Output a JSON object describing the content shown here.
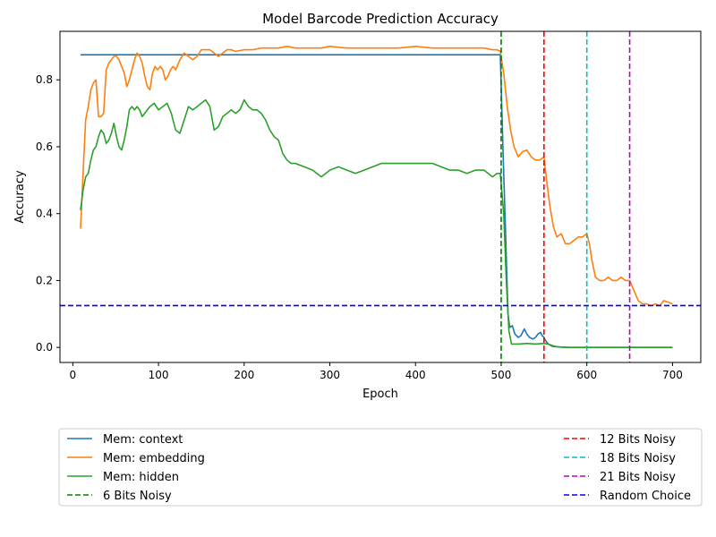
{
  "chart_data": {
    "type": "line",
    "title": "Model Barcode Prediction Accuracy",
    "xlabel": "Epoch",
    "ylabel": "Accuracy",
    "xlim": [
      -15,
      733
    ],
    "ylim": [
      -0.045,
      0.945
    ],
    "xticks": [
      0,
      100,
      200,
      300,
      400,
      500,
      600,
      700
    ],
    "yticks": [
      0.0,
      0.2,
      0.4,
      0.6,
      0.8
    ],
    "xtick_labels": [
      "0",
      "100",
      "200",
      "300",
      "400",
      "500",
      "600",
      "700"
    ],
    "ytick_labels": [
      "0.0",
      "0.2",
      "0.4",
      "0.6",
      "0.8"
    ],
    "grid": false,
    "legend_position": "below chart, two columns",
    "series": [
      {
        "name": "Mem: context",
        "color": "#1f77b4",
        "style": "solid",
        "x": [
          9,
          100,
          200,
          300,
          400,
          490,
          499,
          502,
          505,
          508,
          510,
          513,
          516,
          520,
          523,
          527,
          530,
          533,
          537,
          540,
          543,
          546,
          548,
          550,
          552,
          555,
          560,
          570,
          580,
          600,
          650,
          700
        ],
        "y": [
          0.875,
          0.875,
          0.875,
          0.875,
          0.875,
          0.875,
          0.875,
          0.6,
          0.35,
          0.1,
          0.06,
          0.065,
          0.04,
          0.03,
          0.035,
          0.055,
          0.04,
          0.03,
          0.025,
          0.03,
          0.04,
          0.045,
          0.035,
          0.03,
          0.02,
          0.01,
          0.003,
          0.001,
          0.0,
          0.0,
          0.0,
          0.0
        ]
      },
      {
        "name": "Mem: embedding",
        "color": "#ff7f0e",
        "style": "solid",
        "x": [
          9,
          12,
          15,
          18,
          21,
          24,
          27,
          30,
          33,
          36,
          39,
          42,
          45,
          48,
          51,
          54,
          57,
          60,
          63,
          66,
          69,
          72,
          75,
          78,
          81,
          84,
          87,
          90,
          93,
          96,
          99,
          102,
          105,
          108,
          111,
          114,
          117,
          120,
          125,
          130,
          135,
          140,
          145,
          150,
          155,
          160,
          165,
          170,
          175,
          180,
          185,
          190,
          200,
          210,
          220,
          230,
          240,
          250,
          260,
          270,
          280,
          290,
          300,
          320,
          340,
          360,
          380,
          400,
          420,
          440,
          460,
          480,
          490,
          495,
          499,
          503,
          507,
          511,
          515,
          520,
          525,
          530,
          535,
          540,
          545,
          550,
          553,
          557,
          561,
          565,
          570,
          575,
          580,
          585,
          590,
          595,
          600,
          603,
          606,
          610,
          615,
          620,
          625,
          630,
          635,
          640,
          645,
          650,
          655,
          660,
          665,
          670,
          675,
          680,
          685,
          690,
          695,
          700
        ],
        "y": [
          0.355,
          0.52,
          0.68,
          0.72,
          0.77,
          0.79,
          0.8,
          0.69,
          0.69,
          0.7,
          0.83,
          0.85,
          0.86,
          0.87,
          0.87,
          0.86,
          0.84,
          0.82,
          0.78,
          0.8,
          0.83,
          0.86,
          0.88,
          0.87,
          0.85,
          0.81,
          0.78,
          0.77,
          0.82,
          0.84,
          0.83,
          0.84,
          0.83,
          0.8,
          0.81,
          0.83,
          0.84,
          0.83,
          0.86,
          0.88,
          0.87,
          0.86,
          0.87,
          0.89,
          0.89,
          0.89,
          0.88,
          0.87,
          0.88,
          0.89,
          0.89,
          0.885,
          0.89,
          0.89,
          0.895,
          0.895,
          0.895,
          0.9,
          0.895,
          0.895,
          0.895,
          0.895,
          0.9,
          0.895,
          0.895,
          0.895,
          0.895,
          0.9,
          0.895,
          0.895,
          0.895,
          0.895,
          0.89,
          0.89,
          0.885,
          0.82,
          0.72,
          0.65,
          0.6,
          0.57,
          0.585,
          0.59,
          0.57,
          0.56,
          0.56,
          0.57,
          0.5,
          0.42,
          0.36,
          0.33,
          0.34,
          0.31,
          0.31,
          0.32,
          0.33,
          0.33,
          0.34,
          0.31,
          0.26,
          0.21,
          0.2,
          0.2,
          0.21,
          0.2,
          0.2,
          0.21,
          0.2,
          0.2,
          0.17,
          0.14,
          0.13,
          0.13,
          0.125,
          0.13,
          0.125,
          0.14,
          0.135,
          0.13
        ]
      },
      {
        "name": "Mem: hidden",
        "color": "#2ca02c",
        "style": "solid",
        "x": [
          9,
          12,
          15,
          18,
          21,
          24,
          27,
          30,
          33,
          36,
          39,
          42,
          45,
          48,
          51,
          54,
          57,
          60,
          63,
          66,
          69,
          72,
          75,
          78,
          81,
          84,
          87,
          90,
          95,
          100,
          105,
          110,
          115,
          120,
          125,
          130,
          135,
          140,
          145,
          150,
          155,
          160,
          165,
          170,
          175,
          180,
          185,
          190,
          195,
          200,
          205,
          210,
          215,
          220,
          225,
          230,
          235,
          240,
          245,
          250,
          255,
          260,
          270,
          280,
          290,
          300,
          310,
          320,
          330,
          340,
          350,
          360,
          370,
          380,
          390,
          400,
          410,
          420,
          430,
          440,
          450,
          460,
          470,
          480,
          490,
          495,
          499,
          503,
          506,
          509,
          512,
          520,
          530,
          540,
          550,
          555,
          560,
          565,
          570,
          580,
          600,
          650,
          700
        ],
        "y": [
          0.41,
          0.47,
          0.51,
          0.52,
          0.56,
          0.59,
          0.6,
          0.63,
          0.65,
          0.64,
          0.61,
          0.62,
          0.64,
          0.67,
          0.63,
          0.6,
          0.59,
          0.62,
          0.66,
          0.71,
          0.72,
          0.71,
          0.72,
          0.71,
          0.69,
          0.7,
          0.71,
          0.72,
          0.73,
          0.71,
          0.72,
          0.73,
          0.7,
          0.65,
          0.64,
          0.68,
          0.72,
          0.71,
          0.72,
          0.73,
          0.74,
          0.72,
          0.65,
          0.66,
          0.69,
          0.7,
          0.71,
          0.7,
          0.71,
          0.74,
          0.72,
          0.71,
          0.71,
          0.7,
          0.68,
          0.65,
          0.63,
          0.62,
          0.58,
          0.56,
          0.55,
          0.55,
          0.54,
          0.53,
          0.51,
          0.53,
          0.54,
          0.53,
          0.52,
          0.53,
          0.54,
          0.55,
          0.55,
          0.55,
          0.55,
          0.55,
          0.55,
          0.55,
          0.54,
          0.53,
          0.53,
          0.52,
          0.53,
          0.53,
          0.51,
          0.52,
          0.52,
          0.4,
          0.2,
          0.05,
          0.01,
          0.01,
          0.012,
          0.01,
          0.012,
          0.01,
          0.005,
          0.002,
          0.001,
          0.0,
          0.0,
          0.0,
          0.0
        ]
      },
      {
        "name": "6 Bits Noisy",
        "color": "#008000",
        "style": "dashed",
        "vline": 500
      },
      {
        "name": "12 Bits Noisy",
        "color": "#ff0000",
        "style": "dashed",
        "vline": 550
      },
      {
        "name": "18 Bits Noisy",
        "color": "#00bfbf",
        "style": "dashed",
        "vline": 600
      },
      {
        "name": "21 Bits Noisy",
        "color": "#bf00bf",
        "style": "dashed",
        "vline": 650
      },
      {
        "name": "Random Choice",
        "color": "#0000ff",
        "style": "dashed",
        "hline": 0.125
      }
    ]
  }
}
